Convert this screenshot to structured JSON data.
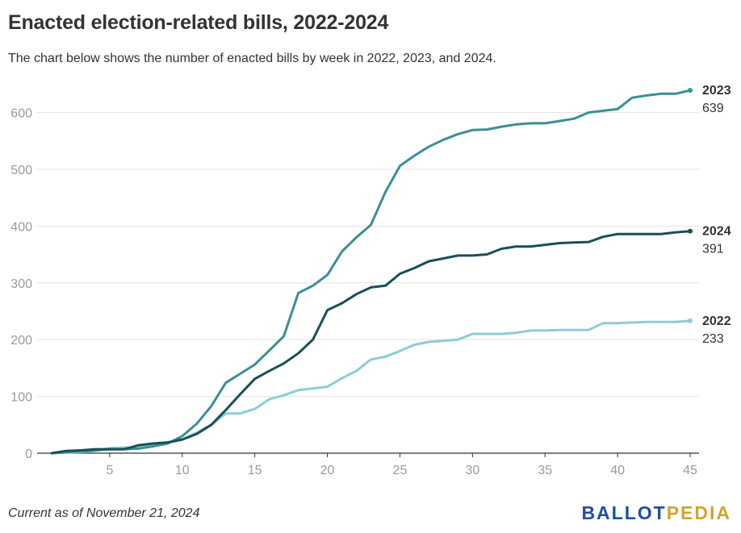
{
  "title": "Enacted election-related bills, 2022-2024",
  "subtitle": "The chart below shows the number of enacted bills by week in 2022, 2023, and 2024.",
  "footer_note": "Current as of November 21, 2024",
  "logo": {
    "part1": "BALLOT",
    "part2": "PEDIA",
    "color1": "#1e4ea2",
    "color2": "#d2a42b"
  },
  "chart_data": {
    "type": "line",
    "title": "Enacted election-related bills, 2022-2024",
    "xlabel": "",
    "ylabel": "",
    "xlim": [
      1,
      45
    ],
    "ylim": [
      0,
      650
    ],
    "x_ticks": [
      5,
      10,
      15,
      20,
      25,
      30,
      35,
      40,
      45
    ],
    "y_ticks": [
      0,
      100,
      200,
      300,
      400,
      500,
      600
    ],
    "grid": true,
    "x": [
      1,
      2,
      3,
      4,
      5,
      6,
      7,
      8,
      9,
      10,
      11,
      12,
      13,
      14,
      15,
      16,
      17,
      18,
      19,
      20,
      21,
      22,
      23,
      24,
      25,
      26,
      27,
      28,
      29,
      30,
      31,
      32,
      33,
      34,
      35,
      36,
      37,
      38,
      39,
      40,
      41,
      42,
      43,
      44,
      45
    ],
    "series": [
      {
        "name": "2023",
        "color": "#3a8f96",
        "end_label": "639",
        "values": [
          0,
          2,
          3,
          5,
          7,
          7,
          8,
          12,
          17,
          30,
          52,
          83,
          124,
          140,
          156,
          181,
          206,
          282,
          295,
          314,
          355,
          380,
          402,
          460,
          506,
          524,
          540,
          552,
          562,
          569,
          570,
          575,
          579,
          581,
          581,
          585,
          589,
          600,
          603,
          606,
          626,
          630,
          633,
          633,
          639
        ]
      },
      {
        "name": "2024",
        "color": "#184f57",
        "end_label": "391",
        "values": [
          0,
          4,
          5,
          7,
          7,
          7,
          14,
          17,
          19,
          24,
          34,
          50,
          76,
          104,
          131,
          145,
          158,
          176,
          200,
          252,
          264,
          280,
          292,
          295,
          316,
          326,
          338,
          343,
          348,
          348,
          350,
          360,
          364,
          364,
          367,
          370,
          371,
          372,
          381,
          386,
          386,
          386,
          386,
          389,
          391
        ]
      },
      {
        "name": "2022",
        "color": "#8ccdd6",
        "end_label": "233",
        "values": [
          0,
          1,
          2,
          4,
          9,
          10,
          10,
          14,
          19,
          24,
          36,
          50,
          70,
          70,
          78,
          95,
          102,
          111,
          114,
          117,
          132,
          145,
          165,
          170,
          180,
          191,
          196,
          198,
          200,
          210,
          210,
          210,
          212,
          216,
          216,
          217,
          217,
          217,
          229,
          229,
          230,
          231,
          231,
          231,
          233
        ]
      }
    ]
  }
}
